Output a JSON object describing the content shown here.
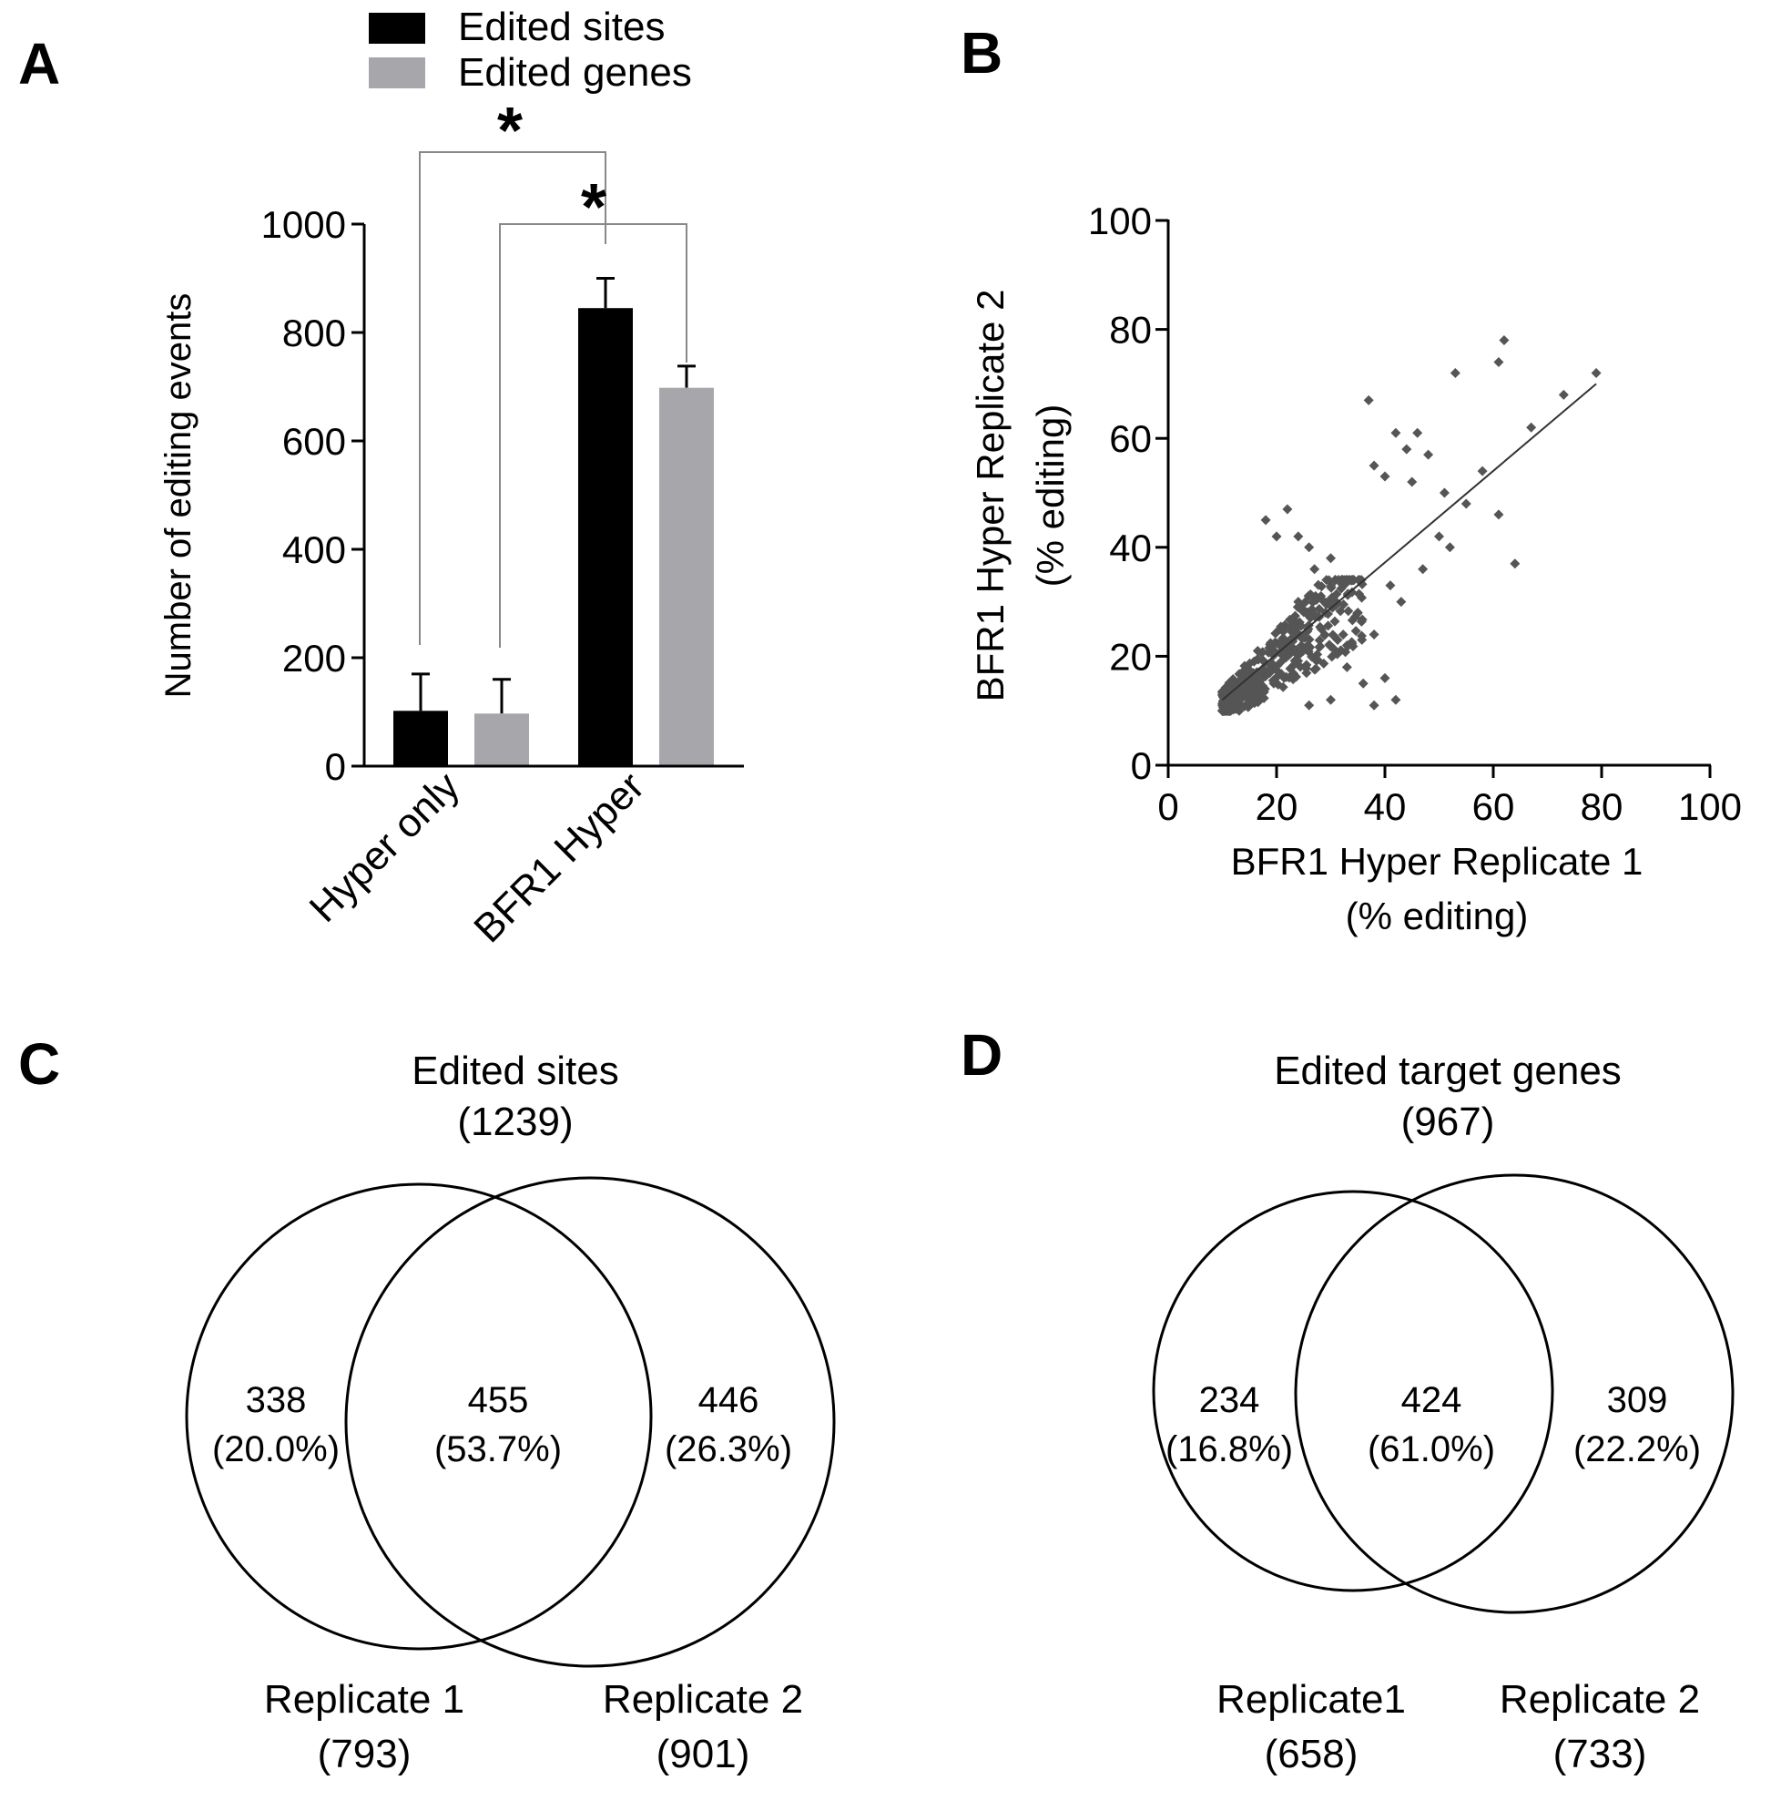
{
  "panel_labels": {
    "a": "A",
    "b": "B",
    "c": "C",
    "d": "D"
  },
  "colors": {
    "edited_sites": "#000000",
    "edited_genes": "#a7a6ab",
    "scatter_points": "#555555",
    "axis": "#000000"
  },
  "chart_data": [
    {
      "panel": "A",
      "type": "bar",
      "ylabel": "Number of editing events",
      "ylim": [
        0,
        1000
      ],
      "yticks": [
        "0",
        "200",
        "400",
        "600",
        "800",
        "1000"
      ],
      "categories": [
        "Hyper only",
        "BFR1 Hyper"
      ],
      "series": [
        {
          "name": "Edited sites",
          "values": [
            102,
            845
          ],
          "errors": [
            68,
            55
          ]
        },
        {
          "name": "Edited genes",
          "values": [
            97,
            698
          ],
          "errors": [
            63,
            40
          ]
        }
      ],
      "annotations": [
        "*",
        "*"
      ]
    },
    {
      "panel": "B",
      "type": "scatter",
      "xlabel": [
        "BFR1 Hyper Replicate 1",
        "(% editing)"
      ],
      "ylabel": [
        "BFR1 Hyper Replicate 2",
        "(% editing)"
      ],
      "xlim": [
        0,
        100
      ],
      "ylim": [
        0,
        100
      ],
      "xticks": [
        "0",
        "20",
        "40",
        "60",
        "80",
        "100"
      ],
      "yticks": [
        "0",
        "20",
        "40",
        "60",
        "80",
        "100"
      ],
      "trendline": {
        "x": [
          10,
          79
        ],
        "y": [
          12,
          70
        ]
      },
      "highlight_points": [
        [
          62,
          78
        ],
        [
          53,
          72
        ],
        [
          79,
          72
        ],
        [
          61,
          74
        ],
        [
          73,
          68
        ],
        [
          67,
          62
        ],
        [
          58,
          54
        ],
        [
          61,
          46
        ],
        [
          64,
          37
        ],
        [
          37,
          67
        ],
        [
          42,
          61
        ],
        [
          46,
          61
        ],
        [
          44,
          58
        ],
        [
          48,
          57
        ],
        [
          51,
          50
        ],
        [
          38,
          55
        ],
        [
          40,
          53
        ],
        [
          45,
          52
        ],
        [
          55,
          48
        ],
        [
          50,
          42
        ],
        [
          52,
          40
        ],
        [
          47,
          36
        ],
        [
          41,
          33
        ],
        [
          43,
          30
        ],
        [
          33,
          34
        ],
        [
          30,
          38
        ],
        [
          27,
          36
        ],
        [
          22,
          47
        ],
        [
          24,
          42
        ],
        [
          18,
          45
        ],
        [
          20,
          42
        ],
        [
          26,
          40
        ],
        [
          35,
          28
        ],
        [
          38,
          24
        ],
        [
          33,
          18
        ],
        [
          36,
          15
        ],
        [
          40,
          16
        ],
        [
          42,
          12
        ],
        [
          38,
          11
        ],
        [
          30,
          12
        ],
        [
          26,
          11
        ],
        [
          33,
          22
        ],
        [
          29,
          28
        ],
        [
          24,
          30
        ]
      ],
      "cluster": {
        "x_range": [
          10,
          36
        ],
        "y_range": [
          10,
          34
        ],
        "count": 430
      }
    },
    {
      "panel": "C",
      "type": "venn",
      "title": "Edited sites",
      "total": "(1239)",
      "left": {
        "label": "Replicate 1",
        "count": "(793)",
        "value": "338",
        "pct": "(20.0%)"
      },
      "overlap": {
        "value": "455",
        "pct": "(53.7%)"
      },
      "right": {
        "label": "Replicate 2",
        "count": "(901)",
        "value": "446",
        "pct": "(26.3%)"
      }
    },
    {
      "panel": "D",
      "type": "venn",
      "title": "Edited target genes",
      "total": "(967)",
      "left": {
        "label": "Replicate1",
        "count": "(658)",
        "value": "234",
        "pct": "(16.8%)"
      },
      "overlap": {
        "value": "424",
        "pct": "(61.0%)"
      },
      "right": {
        "label": "Replicate 2",
        "count": "(733)",
        "value": "309",
        "pct": "(22.2%)"
      }
    }
  ]
}
